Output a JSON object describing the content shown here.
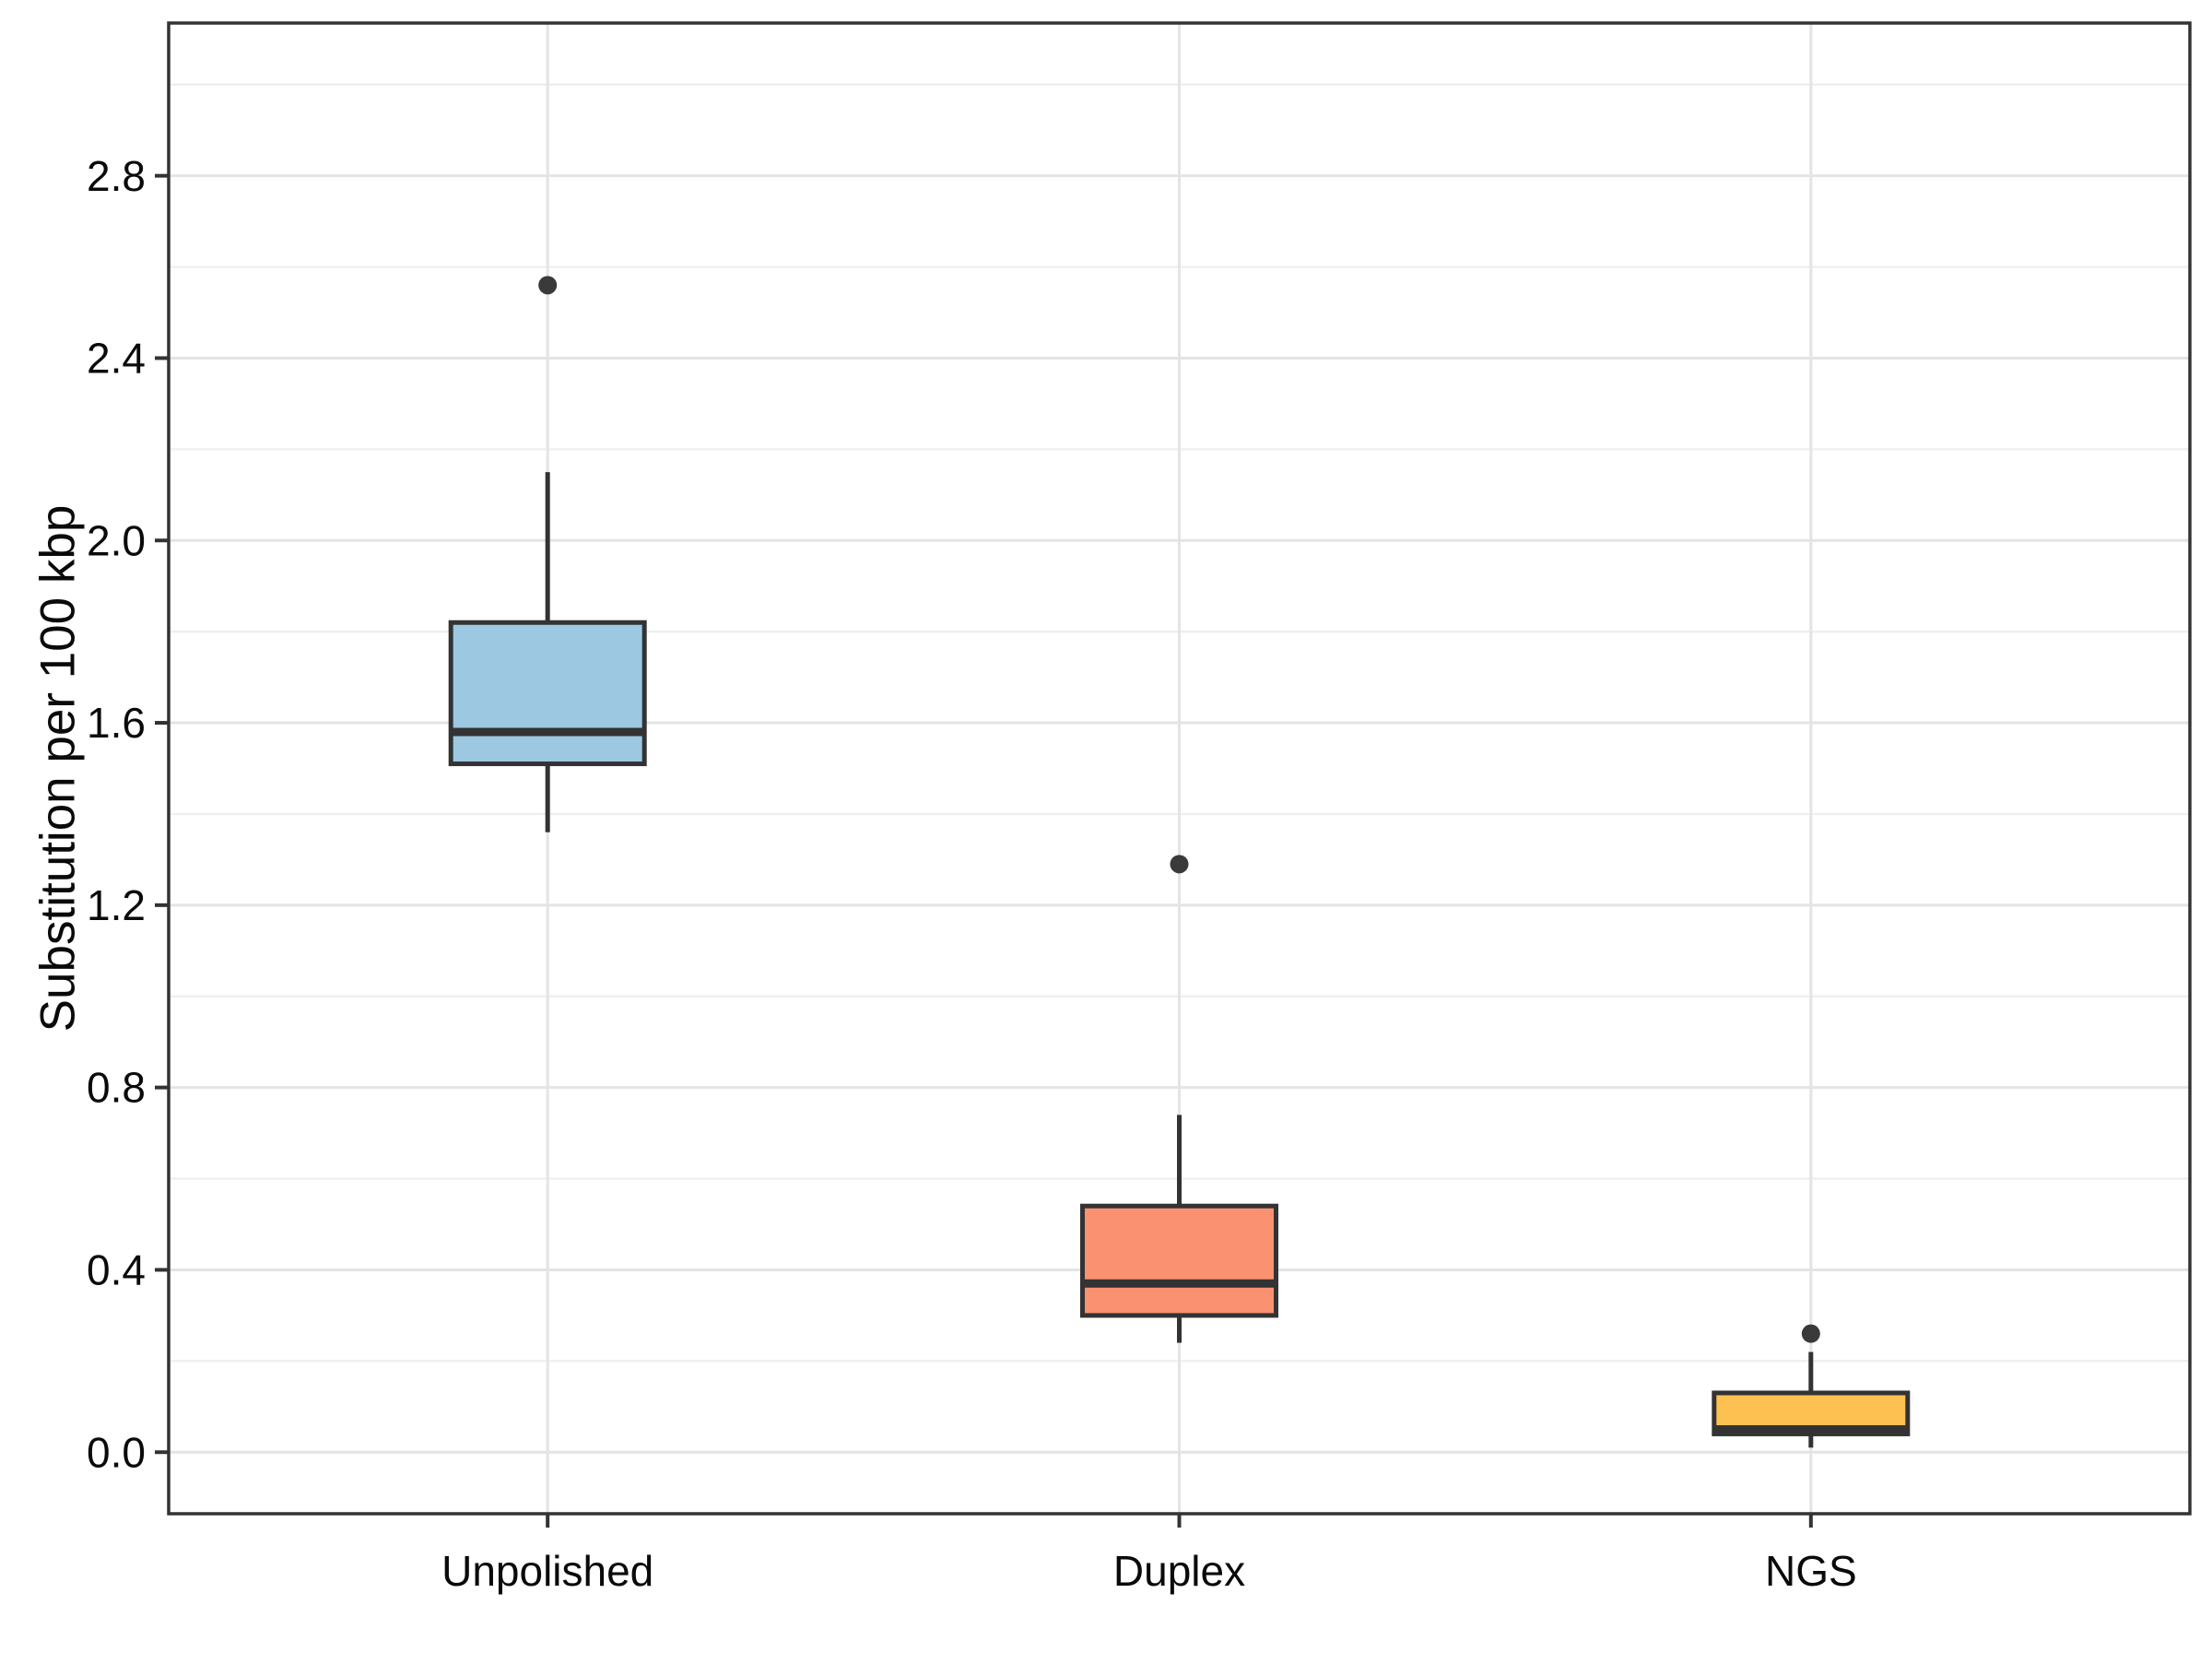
{
  "chart_data": {
    "type": "box",
    "title": "",
    "xlabel": "",
    "ylabel": "Substitution per 100 kbp",
    "categories": [
      "Unpolished",
      "Duplex",
      "NGS"
    ],
    "series": [
      {
        "name": "Unpolished",
        "whisker_low": 1.36,
        "q1": 1.51,
        "median": 1.58,
        "q3": 1.82,
        "whisker_high": 2.15,
        "outliers": [
          2.56
        ],
        "fill": "#9CC8E2"
      },
      {
        "name": "Duplex",
        "whisker_low": 0.24,
        "q1": 0.3,
        "median": 0.37,
        "q3": 0.54,
        "whisker_high": 0.74,
        "outliers": [
          1.29
        ],
        "fill": "#FA9171"
      },
      {
        "name": "NGS",
        "whisker_low": 0.01,
        "q1": 0.04,
        "median": 0.05,
        "q3": 0.13,
        "whisker_high": 0.22,
        "outliers": [
          0.26
        ],
        "fill": "#FDC152"
      }
    ],
    "y_axis": {
      "ticks": [
        0.0,
        0.4,
        0.8,
        1.2,
        1.6,
        2.0,
        2.4,
        2.8
      ],
      "tick_labels": [
        "0.0",
        "0.4",
        "0.8",
        "1.2",
        "1.6",
        "2.0",
        "2.4",
        "2.8"
      ],
      "minor_step": 0.2,
      "minor_max": 3.0,
      "range": [
        -0.135,
        3.135
      ]
    },
    "grid": true,
    "legend_position": "none",
    "colors": {
      "box_border": "#333333",
      "median": "#333333",
      "whisker": "#333333",
      "outlier": "#3A3A3A",
      "grid_major": "#E4E4E4",
      "grid_minor": "#EFEFEF",
      "panel_border": "#333333",
      "tick_mark": "#333333",
      "axis_text": "#0A0A0A",
      "background": "#FFFFFF"
    }
  }
}
